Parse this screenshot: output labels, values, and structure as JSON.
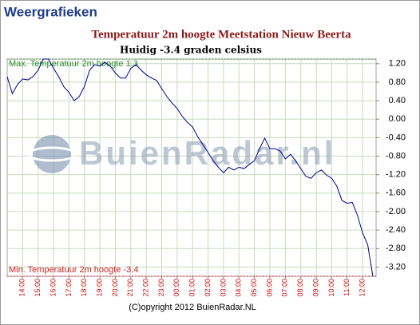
{
  "header": {
    "title": "Weergrafieken"
  },
  "chart_data": {
    "type": "line",
    "title": "Temperatuur 2m hoogte Meetstation Nieuw Beerta",
    "subtitle": "Huidig -3.4 graden celsius",
    "watermark": "BuienRadar.nl",
    "copyright": "(C)opyright 2012 BuienRadar.NL",
    "categories": [
      null,
      null,
      null,
      "14:00",
      null,
      null,
      "15:00",
      null,
      null,
      "16:00",
      null,
      null,
      "17:00",
      null,
      null,
      "18:00",
      null,
      null,
      "19:00",
      null,
      null,
      "20:00",
      null,
      null,
      "21:00",
      null,
      null,
      "22:00",
      null,
      null,
      "23:00",
      null,
      null,
      "00:00",
      null,
      null,
      "01:00",
      null,
      null,
      "02:00",
      null,
      null,
      "03:00",
      null,
      null,
      "04:00",
      null,
      null,
      "05:00",
      null,
      null,
      "06:00",
      null,
      null,
      "07:00",
      null,
      null,
      "08:00",
      null,
      null,
      "09:00",
      null,
      null,
      "10:00",
      null,
      null,
      "11:00",
      null,
      null,
      "12:00",
      null,
      null
    ],
    "values": [
      0.92,
      0.55,
      0.75,
      0.87,
      0.85,
      0.92,
      1.06,
      1.3,
      1.3,
      1.1,
      0.92,
      0.7,
      0.58,
      0.4,
      0.49,
      0.71,
      1.06,
      1.18,
      1.15,
      1.23,
      1.15,
      1.0,
      0.89,
      0.89,
      1.1,
      1.18,
      1.06,
      0.96,
      0.89,
      0.84,
      0.66,
      0.49,
      0.35,
      0.23,
      0.06,
      -0.07,
      -0.17,
      -0.38,
      -0.55,
      -0.72,
      -0.9,
      -1.04,
      -1.16,
      -1.04,
      -1.1,
      -1.04,
      -1.07,
      -0.98,
      -0.9,
      -0.64,
      -0.41,
      -0.64,
      -0.64,
      -0.69,
      -0.86,
      -0.76,
      -0.9,
      -1.07,
      -1.24,
      -1.28,
      -1.16,
      -1.1,
      -1.21,
      -1.28,
      -1.45,
      -1.76,
      -1.82,
      -1.8,
      -2.08,
      -2.46,
      -2.72,
      -3.4
    ],
    "color": "#00008b",
    "ylim": [
      -3.4,
      1.3
    ],
    "yticks": [
      {
        "value": 1.2,
        "label": "1.20"
      },
      {
        "value": 0.8,
        "label": "0.80"
      },
      {
        "value": 0.4,
        "label": "0.40"
      },
      {
        "value": 0,
        "label": "0.00"
      },
      {
        "value": -0.4,
        "label": "-0.40"
      },
      {
        "value": -0.8,
        "label": "-0.80"
      },
      {
        "value": -1.2,
        "label": "-1.20"
      },
      {
        "value": -1.6,
        "label": "-1.60"
      },
      {
        "value": -2,
        "label": "-2.00"
      },
      {
        "value": -2.4,
        "label": "-2.40"
      },
      {
        "value": -2.8,
        "label": "-2.80"
      },
      {
        "value": -3.2,
        "label": "-3.20"
      }
    ],
    "grid": true,
    "annotations": [
      {
        "text": "Max. Temperatuur 2m hoogte 1.3",
        "value": 1.3,
        "color": "#2e8b2e"
      },
      {
        "text": "Min. Temperatuur 2m hoogte -3.4",
        "value": -3.4,
        "color": "#cc2222"
      }
    ]
  }
}
